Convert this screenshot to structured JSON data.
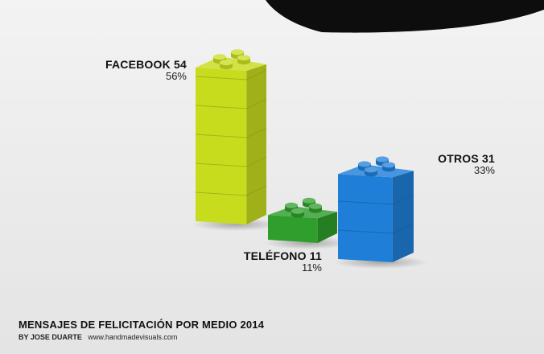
{
  "chart_data": {
    "type": "bar",
    "title": "MENSAJES DE FELICITACIÓN POR MEDIO 2014",
    "categories": [
      "FACEBOOK",
      "TELÉFONO",
      "OTROS"
    ],
    "values": [
      54,
      11,
      31
    ],
    "percentages": [
      "56%",
      "11%",
      "33%"
    ],
    "colors": [
      "#c8dc1e",
      "#2f9e2c",
      "#1f7fd8"
    ],
    "ylim": [
      0,
      54
    ]
  },
  "credit": {
    "by": "BY JOSE DUARTE",
    "site": "www.handmadevisuals.com"
  }
}
